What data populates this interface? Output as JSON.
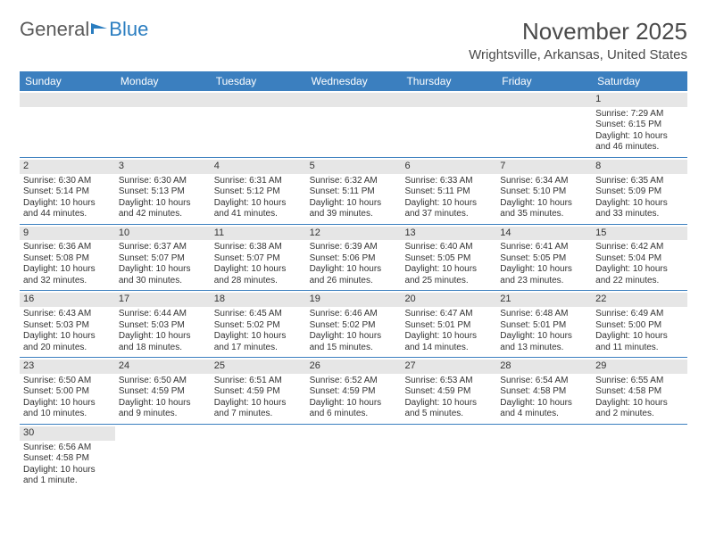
{
  "logo": {
    "text1": "General",
    "text2": "Blue"
  },
  "title": "November 2025",
  "location": "Wrightsville, Arkansas, United States",
  "colors": {
    "header_bg": "#3b7fbf",
    "header_text": "#ffffff",
    "daynum_bg": "#e6e6e6",
    "row_border": "#3b7fbf",
    "text": "#333333",
    "logo_gray": "#5a5a5a",
    "logo_blue": "#2a7dc0"
  },
  "days_of_week": [
    "Sunday",
    "Monday",
    "Tuesday",
    "Wednesday",
    "Thursday",
    "Friday",
    "Saturday"
  ],
  "weeks": [
    [
      {
        "n": "",
        "lines": []
      },
      {
        "n": "",
        "lines": []
      },
      {
        "n": "",
        "lines": []
      },
      {
        "n": "",
        "lines": []
      },
      {
        "n": "",
        "lines": []
      },
      {
        "n": "",
        "lines": []
      },
      {
        "n": "1",
        "lines": [
          "Sunrise: 7:29 AM",
          "Sunset: 6:15 PM",
          "Daylight: 10 hours",
          "and 46 minutes."
        ]
      }
    ],
    [
      {
        "n": "2",
        "lines": [
          "Sunrise: 6:30 AM",
          "Sunset: 5:14 PM",
          "Daylight: 10 hours",
          "and 44 minutes."
        ]
      },
      {
        "n": "3",
        "lines": [
          "Sunrise: 6:30 AM",
          "Sunset: 5:13 PM",
          "Daylight: 10 hours",
          "and 42 minutes."
        ]
      },
      {
        "n": "4",
        "lines": [
          "Sunrise: 6:31 AM",
          "Sunset: 5:12 PM",
          "Daylight: 10 hours",
          "and 41 minutes."
        ]
      },
      {
        "n": "5",
        "lines": [
          "Sunrise: 6:32 AM",
          "Sunset: 5:11 PM",
          "Daylight: 10 hours",
          "and 39 minutes."
        ]
      },
      {
        "n": "6",
        "lines": [
          "Sunrise: 6:33 AM",
          "Sunset: 5:11 PM",
          "Daylight: 10 hours",
          "and 37 minutes."
        ]
      },
      {
        "n": "7",
        "lines": [
          "Sunrise: 6:34 AM",
          "Sunset: 5:10 PM",
          "Daylight: 10 hours",
          "and 35 minutes."
        ]
      },
      {
        "n": "8",
        "lines": [
          "Sunrise: 6:35 AM",
          "Sunset: 5:09 PM",
          "Daylight: 10 hours",
          "and 33 minutes."
        ]
      }
    ],
    [
      {
        "n": "9",
        "lines": [
          "Sunrise: 6:36 AM",
          "Sunset: 5:08 PM",
          "Daylight: 10 hours",
          "and 32 minutes."
        ]
      },
      {
        "n": "10",
        "lines": [
          "Sunrise: 6:37 AM",
          "Sunset: 5:07 PM",
          "Daylight: 10 hours",
          "and 30 minutes."
        ]
      },
      {
        "n": "11",
        "lines": [
          "Sunrise: 6:38 AM",
          "Sunset: 5:07 PM",
          "Daylight: 10 hours",
          "and 28 minutes."
        ]
      },
      {
        "n": "12",
        "lines": [
          "Sunrise: 6:39 AM",
          "Sunset: 5:06 PM",
          "Daylight: 10 hours",
          "and 26 minutes."
        ]
      },
      {
        "n": "13",
        "lines": [
          "Sunrise: 6:40 AM",
          "Sunset: 5:05 PM",
          "Daylight: 10 hours",
          "and 25 minutes."
        ]
      },
      {
        "n": "14",
        "lines": [
          "Sunrise: 6:41 AM",
          "Sunset: 5:05 PM",
          "Daylight: 10 hours",
          "and 23 minutes."
        ]
      },
      {
        "n": "15",
        "lines": [
          "Sunrise: 6:42 AM",
          "Sunset: 5:04 PM",
          "Daylight: 10 hours",
          "and 22 minutes."
        ]
      }
    ],
    [
      {
        "n": "16",
        "lines": [
          "Sunrise: 6:43 AM",
          "Sunset: 5:03 PM",
          "Daylight: 10 hours",
          "and 20 minutes."
        ]
      },
      {
        "n": "17",
        "lines": [
          "Sunrise: 6:44 AM",
          "Sunset: 5:03 PM",
          "Daylight: 10 hours",
          "and 18 minutes."
        ]
      },
      {
        "n": "18",
        "lines": [
          "Sunrise: 6:45 AM",
          "Sunset: 5:02 PM",
          "Daylight: 10 hours",
          "and 17 minutes."
        ]
      },
      {
        "n": "19",
        "lines": [
          "Sunrise: 6:46 AM",
          "Sunset: 5:02 PM",
          "Daylight: 10 hours",
          "and 15 minutes."
        ]
      },
      {
        "n": "20",
        "lines": [
          "Sunrise: 6:47 AM",
          "Sunset: 5:01 PM",
          "Daylight: 10 hours",
          "and 14 minutes."
        ]
      },
      {
        "n": "21",
        "lines": [
          "Sunrise: 6:48 AM",
          "Sunset: 5:01 PM",
          "Daylight: 10 hours",
          "and 13 minutes."
        ]
      },
      {
        "n": "22",
        "lines": [
          "Sunrise: 6:49 AM",
          "Sunset: 5:00 PM",
          "Daylight: 10 hours",
          "and 11 minutes."
        ]
      }
    ],
    [
      {
        "n": "23",
        "lines": [
          "Sunrise: 6:50 AM",
          "Sunset: 5:00 PM",
          "Daylight: 10 hours",
          "and 10 minutes."
        ]
      },
      {
        "n": "24",
        "lines": [
          "Sunrise: 6:50 AM",
          "Sunset: 4:59 PM",
          "Daylight: 10 hours",
          "and 9 minutes."
        ]
      },
      {
        "n": "25",
        "lines": [
          "Sunrise: 6:51 AM",
          "Sunset: 4:59 PM",
          "Daylight: 10 hours",
          "and 7 minutes."
        ]
      },
      {
        "n": "26",
        "lines": [
          "Sunrise: 6:52 AM",
          "Sunset: 4:59 PM",
          "Daylight: 10 hours",
          "and 6 minutes."
        ]
      },
      {
        "n": "27",
        "lines": [
          "Sunrise: 6:53 AM",
          "Sunset: 4:59 PM",
          "Daylight: 10 hours",
          "and 5 minutes."
        ]
      },
      {
        "n": "28",
        "lines": [
          "Sunrise: 6:54 AM",
          "Sunset: 4:58 PM",
          "Daylight: 10 hours",
          "and 4 minutes."
        ]
      },
      {
        "n": "29",
        "lines": [
          "Sunrise: 6:55 AM",
          "Sunset: 4:58 PM",
          "Daylight: 10 hours",
          "and 2 minutes."
        ]
      }
    ],
    [
      {
        "n": "30",
        "lines": [
          "Sunrise: 6:56 AM",
          "Sunset: 4:58 PM",
          "Daylight: 10 hours",
          "and 1 minute."
        ]
      },
      {
        "n": "",
        "lines": []
      },
      {
        "n": "",
        "lines": []
      },
      {
        "n": "",
        "lines": []
      },
      {
        "n": "",
        "lines": []
      },
      {
        "n": "",
        "lines": []
      },
      {
        "n": "",
        "lines": []
      }
    ]
  ]
}
